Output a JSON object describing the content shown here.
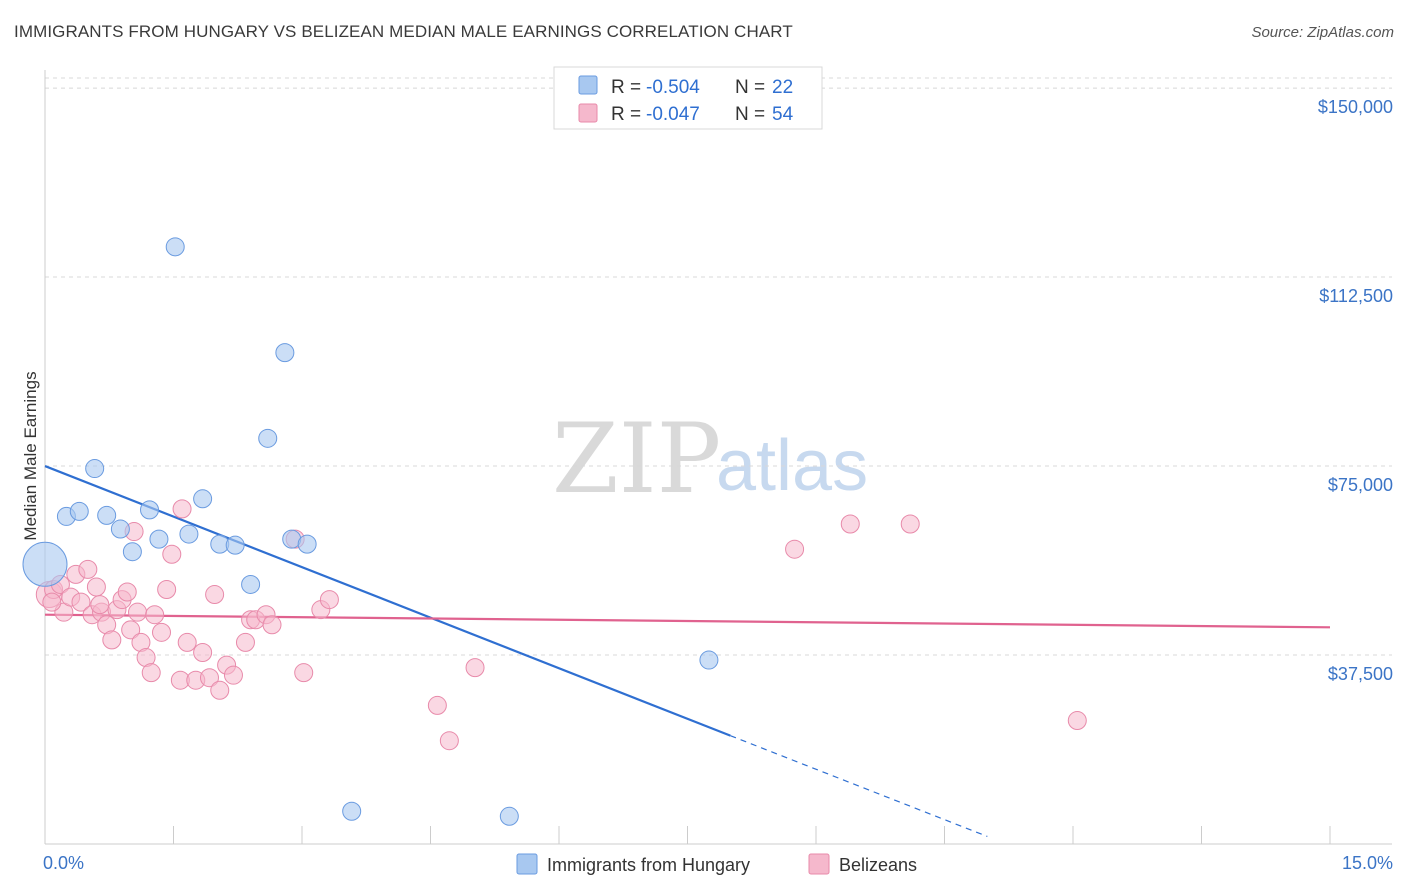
{
  "header": {
    "title": "IMMIGRANTS FROM HUNGARY VS BELIZEAN MEDIAN MALE EARNINGS CORRELATION CHART",
    "source": "Source: ZipAtlas.com"
  },
  "watermark": {
    "zip": "ZIP",
    "atlas": "atlas"
  },
  "legend": {
    "rows": [
      {
        "r_label": "R =",
        "r_value": "-0.504",
        "n_label": "N =",
        "n_value": "22",
        "color": "#a8c8f0"
      },
      {
        "r_label": "R =",
        "r_value": "-0.047",
        "n_label": "N =",
        "n_value": "54",
        "color": "#f5b8cc"
      }
    ]
  },
  "bottom_legend": {
    "items": [
      {
        "label": "Immigrants from Hungary",
        "color": "#a8c8f0"
      },
      {
        "label": "Belizeans",
        "color": "#f5b8cc"
      }
    ]
  },
  "colors": {
    "blue_fill": "#a8c8f0",
    "blue_stroke": "#6a9be0",
    "blue_line": "#2f6fd1",
    "pink_fill": "#f5b8cc",
    "pink_stroke": "#e88aaa",
    "pink_line": "#e0628f",
    "grid": "#d8d8d8",
    "tick_text": "#3b74c6"
  },
  "chart_data": {
    "type": "scatter",
    "title": "IMMIGRANTS FROM HUNGARY VS BELIZEAN MEDIAN MALE EARNINGS CORRELATION CHART",
    "xlabel": "",
    "ylabel": "Median Male Earnings",
    "xlim": [
      0,
      15
    ],
    "ylim": [
      0,
      152000
    ],
    "x_tick_labels": [
      "0.0%",
      "15.0%"
    ],
    "y_ticks": [
      37500,
      75000,
      112500,
      150000
    ],
    "y_tick_labels": [
      "$37,500",
      "$75,000",
      "$112,500",
      "$150,000"
    ],
    "grid": true,
    "legend_position": "top-center",
    "series": [
      {
        "name": "Immigrants from Hungary",
        "points": [
          [
            0.0,
            55500,
            22
          ],
          [
            0.25,
            65000,
            9
          ],
          [
            0.4,
            66000,
            9
          ],
          [
            0.58,
            74500,
            9
          ],
          [
            0.72,
            65200,
            9
          ],
          [
            0.88,
            62500,
            9
          ],
          [
            1.02,
            58000,
            9
          ],
          [
            1.22,
            66300,
            9
          ],
          [
            1.33,
            60500,
            9
          ],
          [
            1.52,
            118500,
            9
          ],
          [
            1.68,
            61500,
            9
          ],
          [
            1.84,
            68500,
            9
          ],
          [
            2.04,
            59500,
            9
          ],
          [
            2.22,
            59300,
            9
          ],
          [
            2.4,
            51500,
            9
          ],
          [
            2.6,
            80500,
            9
          ],
          [
            2.8,
            97500,
            9
          ],
          [
            2.88,
            60500,
            9
          ],
          [
            3.06,
            59500,
            9
          ],
          [
            3.58,
            6500,
            9
          ],
          [
            5.42,
            5500,
            9
          ],
          [
            7.75,
            36500,
            9
          ]
        ],
        "trend": {
          "x0": 0.0,
          "y0": 75000,
          "x1_solid": 8.0,
          "y1_solid": 21500,
          "x1_dash": 11.0,
          "y1_dash": 1500
        }
      },
      {
        "name": "Belizeans",
        "points": [
          [
            0.05,
            49500,
            13
          ],
          [
            0.1,
            50500,
            9
          ],
          [
            0.18,
            51500,
            9
          ],
          [
            0.22,
            46000,
            9
          ],
          [
            0.3,
            49000,
            9
          ],
          [
            0.36,
            53500,
            9
          ],
          [
            0.42,
            48000,
            9
          ],
          [
            0.5,
            54500,
            9
          ],
          [
            0.55,
            45500,
            9
          ],
          [
            0.6,
            51000,
            9
          ],
          [
            0.66,
            46000,
            9
          ],
          [
            0.72,
            43500,
            9
          ],
          [
            0.78,
            40500,
            9
          ],
          [
            0.84,
            46500,
            9
          ],
          [
            0.9,
            48500,
            9
          ],
          [
            0.96,
            50000,
            9
          ],
          [
            1.0,
            42500,
            9
          ],
          [
            1.04,
            62000,
            9
          ],
          [
            1.08,
            46000,
            9
          ],
          [
            1.12,
            40000,
            9
          ],
          [
            1.18,
            37000,
            9
          ],
          [
            1.24,
            34000,
            9
          ],
          [
            1.28,
            45500,
            9
          ],
          [
            1.36,
            42000,
            9
          ],
          [
            1.42,
            50500,
            9
          ],
          [
            1.48,
            57500,
            9
          ],
          [
            1.58,
            32500,
            9
          ],
          [
            1.66,
            40000,
            9
          ],
          [
            1.76,
            32500,
            9
          ],
          [
            1.84,
            38000,
            9
          ],
          [
            1.92,
            33000,
            9
          ],
          [
            1.98,
            49500,
            9
          ],
          [
            2.04,
            30500,
            9
          ],
          [
            2.12,
            35500,
            9
          ],
          [
            2.2,
            33500,
            9
          ],
          [
            2.34,
            40000,
            9
          ],
          [
            2.4,
            44500,
            9
          ],
          [
            2.46,
            44500,
            9
          ],
          [
            2.58,
            45500,
            9
          ],
          [
            2.65,
            43500,
            9
          ],
          [
            2.92,
            60500,
            9
          ],
          [
            3.02,
            34000,
            9
          ],
          [
            3.22,
            46500,
            9
          ],
          [
            3.32,
            48500,
            9
          ],
          [
            1.6,
            66500,
            9
          ],
          [
            4.58,
            27500,
            9
          ],
          [
            4.72,
            20500,
            9
          ],
          [
            5.02,
            35000,
            9
          ],
          [
            8.75,
            58500,
            9
          ],
          [
            9.4,
            63500,
            9
          ],
          [
            10.1,
            63500,
            9
          ],
          [
            12.05,
            24500,
            9
          ],
          [
            0.08,
            48000,
            9
          ],
          [
            0.64,
            47500,
            9
          ]
        ],
        "trend": {
          "x0": 0.0,
          "y0": 45500,
          "x1": 15.0,
          "y1": 43000
        }
      }
    ]
  }
}
